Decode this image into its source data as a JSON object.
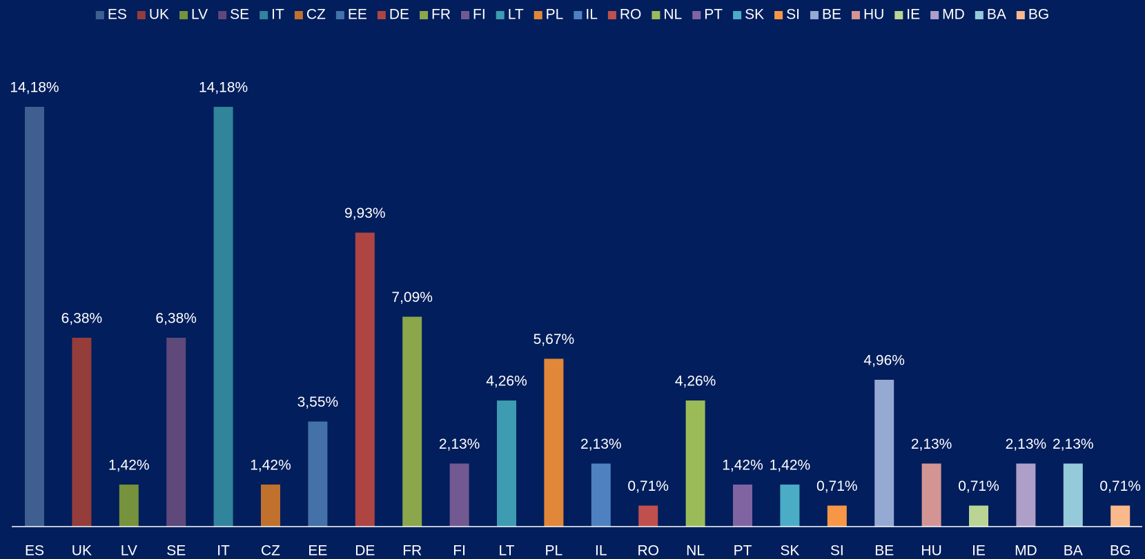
{
  "chart_data": {
    "type": "bar",
    "categories": [
      "ES",
      "UK",
      "LV",
      "SE",
      "IT",
      "CZ",
      "EE",
      "DE",
      "FR",
      "FI",
      "LT",
      "PL",
      "IL",
      "RO",
      "NL",
      "PT",
      "SK",
      "SI",
      "BE",
      "HU",
      "IE",
      "MD",
      "BA",
      "BG"
    ],
    "values": [
      14.18,
      6.38,
      1.42,
      6.38,
      14.18,
      1.42,
      3.55,
      9.93,
      7.09,
      2.13,
      4.26,
      5.67,
      2.13,
      0.71,
      4.26,
      1.42,
      1.42,
      0.71,
      4.96,
      2.13,
      0.71,
      2.13,
      2.13,
      0.71
    ],
    "value_labels": [
      "14,18%",
      "6,38%",
      "1,42%",
      "6,38%",
      "14,18%",
      "1,42%",
      "3,55%",
      "9,93%",
      "7,09%",
      "2,13%",
      "4,26%",
      "5,67%",
      "2,13%",
      "0,71%",
      "4,26%",
      "1,42%",
      "1,42%",
      "0,71%",
      "4,96%",
      "2,13%",
      "0,71%",
      "2,13%",
      "2,13%",
      "0,71%"
    ],
    "colors": [
      "#3e5f8f",
      "#943d3b",
      "#76923c",
      "#5f497a",
      "#31849b",
      "#c0712e",
      "#4471a8",
      "#ae4543",
      "#8ba64b",
      "#725992",
      "#3d9bb2",
      "#e08739",
      "#4f81c1",
      "#c0504d",
      "#9bbb59",
      "#8064a2",
      "#4bacc6",
      "#f79646",
      "#95a9d3",
      "#d39594",
      "#bad496",
      "#ad9fc7",
      "#94cad9",
      "#f9b98d"
    ],
    "legend": "top"
  }
}
